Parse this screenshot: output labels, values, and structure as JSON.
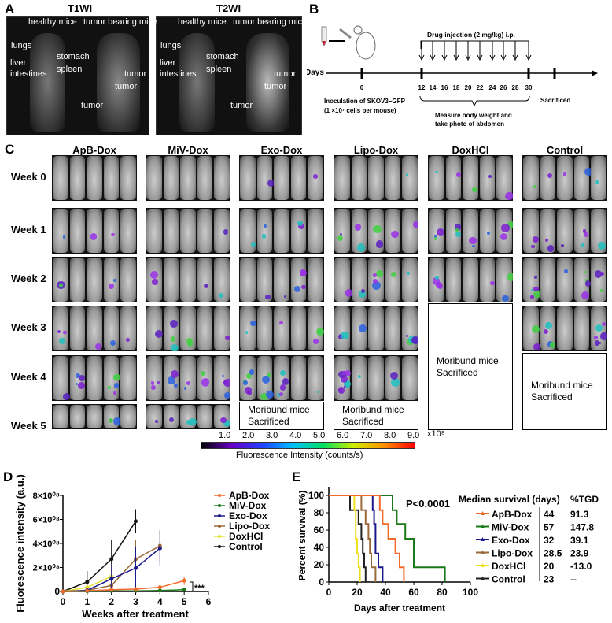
{
  "panelA": {
    "label": "A",
    "images": [
      {
        "title": "T1WI"
      },
      {
        "title": "T2WI"
      }
    ],
    "healthy": "healthy mice",
    "tumor_bearing": "tumor bearing mice",
    "organs": [
      "lungs",
      "liver",
      "intestines",
      "stomach",
      "spleen"
    ],
    "tumor": "tumor"
  },
  "panelB": {
    "label": "B",
    "days_label": "Days",
    "injection": "Drug  injection (2 mg/kg) i.p.",
    "ticks": [
      "0",
      "12",
      "14",
      "16",
      "18",
      "20",
      "22",
      "24",
      "26",
      "28",
      "30"
    ],
    "inoculation_1": "Inoculation of  SKOV3−GFP",
    "inoculation_2": "(1 ×10⁷ cells per mouse)",
    "measure_1": "Measure body weight and",
    "measure_2": "take photo of abdomen",
    "sacrificed": "Sacrificed"
  },
  "panelC": {
    "label": "C",
    "groups": [
      "ApB-Dox",
      "MiV-Dox",
      "Exo-Dox",
      "Lipo-Dox",
      "DoxHCl",
      "Control"
    ],
    "weeks": [
      "Week 0",
      "Week 1",
      "Week 2",
      "Week 3",
      "Week 4",
      "Week 5"
    ],
    "moribund_1": "Moribund mice",
    "moribund_2": "Sacrificed",
    "colorbar_ticks": [
      "1.0",
      "2.0",
      "3.0",
      "4.0",
      "5.0",
      "6.0",
      "7.0",
      "8.0",
      "9.0"
    ],
    "colorbar_unit": "x10⁸",
    "colorbar_label": "Fluorescence Intensity (counts/s)"
  },
  "chart_data": [
    {
      "panel": "D",
      "type": "line",
      "xlabel": "Weeks after treatment",
      "ylabel": "Fluorescence intensity (a.u.)",
      "xlim": [
        0,
        6
      ],
      "ylim": [
        0,
        800000000
      ],
      "xticks": [
        "0",
        "1",
        "2",
        "3",
        "4",
        "5",
        "6"
      ],
      "yticks": [
        "0",
        "2×10⁰⁸",
        "4×10⁰⁸",
        "6×10⁰⁸",
        "8×10⁰⁸"
      ],
      "legend": "right",
      "annotation": "***",
      "series": [
        {
          "name": "ApB-Dox",
          "color": "#f26b2c",
          "x": [
            0,
            1,
            2,
            3,
            4,
            5
          ],
          "y": [
            0,
            5000000,
            15000000,
            20000000,
            35000000,
            90000000
          ],
          "err": [
            0,
            3000000,
            8000000,
            10000000,
            20000000,
            35000000
          ]
        },
        {
          "name": "MiV-Dox",
          "color": "#1a7a1a",
          "x": [
            0,
            1,
            2,
            3,
            4,
            5
          ],
          "y": [
            0,
            2000000,
            5000000,
            5000000,
            8000000,
            15000000
          ],
          "err": [
            0,
            1000000,
            3000000,
            3000000,
            5000000,
            12000000
          ]
        },
        {
          "name": "Exo-Dox",
          "color": "#1a1a8c",
          "x": [
            0,
            1,
            2,
            3,
            4
          ],
          "y": [
            0,
            10000000,
            105000000,
            195000000,
            360000000
          ],
          "err": [
            0,
            5000000,
            120000000,
            180000000,
            150000000
          ]
        },
        {
          "name": "Lipo-Dox",
          "color": "#9b6a3a",
          "x": [
            0,
            1,
            2,
            3,
            4
          ],
          "y": [
            0,
            10000000,
            50000000,
            270000000,
            380000000
          ],
          "err": [
            0,
            5000000,
            40000000,
            160000000,
            130000000
          ]
        },
        {
          "name": "DoxHCl",
          "color": "#e6e033",
          "x": [
            0,
            1,
            2
          ],
          "y": [
            0,
            35000000,
            125000000
          ],
          "err": [
            0,
            15000000,
            100000000
          ]
        },
        {
          "name": "Control",
          "color": "#111111",
          "x": [
            0,
            1,
            2,
            3
          ],
          "y": [
            0,
            80000000,
            270000000,
            585000000
          ],
          "err": [
            0,
            90000000,
            160000000,
            100000000
          ]
        }
      ]
    },
    {
      "panel": "E",
      "type": "line",
      "xlabel": "Days after treatment",
      "ylabel": "Percent survival (%)",
      "xlim": [
        0,
        100
      ],
      "ylim": [
        0,
        100
      ],
      "xticks": [
        "0",
        "20",
        "40",
        "60",
        "80",
        "100"
      ],
      "yticks": [
        "0",
        "20",
        "40",
        "60",
        "80",
        "100"
      ],
      "annotation": "P<0.0001",
      "table_header_1": "Median survival (days)",
      "table_header_2": "%TGD",
      "series": [
        {
          "name": "ApB-Dox",
          "color": "#f26b2c",
          "median": "44",
          "tgd": "91.3",
          "steps": [
            [
              36,
              83
            ],
            [
              38,
              67
            ],
            [
              42,
              50
            ],
            [
              47,
              33
            ],
            [
              50,
              17
            ],
            [
              53,
              0
            ]
          ]
        },
        {
          "name": "MiV-Dox",
          "color": "#1a7a1a",
          "median": "57",
          "tgd": "147.8",
          "steps": [
            [
              45,
              83
            ],
            [
              48,
              67
            ],
            [
              54,
              50
            ],
            [
              60,
              17
            ],
            [
              82,
              0
            ]
          ]
        },
        {
          "name": "Exo-Dox",
          "color": "#1a1a8c",
          "median": "32",
          "tgd": "39.1",
          "steps": [
            [
              31,
              83
            ],
            [
              32,
              67
            ],
            [
              33,
              33
            ],
            [
              35,
              17
            ],
            [
              38,
              0
            ]
          ]
        },
        {
          "name": "Lipo-Dox",
          "color": "#9b6a3a",
          "median": "28.5",
          "tgd": "23.9",
          "steps": [
            [
              23,
              83
            ],
            [
              26,
              67
            ],
            [
              28,
              50
            ],
            [
              29,
              33
            ],
            [
              30,
              17
            ],
            [
              33,
              0
            ]
          ]
        },
        {
          "name": "DoxHCl",
          "color": "#f0e020",
          "median": "20",
          "tgd": "-13.0",
          "steps": [
            [
              18,
              83
            ],
            [
              19,
              50
            ],
            [
              20,
              33
            ],
            [
              21,
              17
            ],
            [
              22,
              0
            ]
          ]
        },
        {
          "name": "Control",
          "color": "#222222",
          "median": "23",
          "tgd": "--",
          "steps": [
            [
              15,
              83
            ],
            [
              21,
              67
            ],
            [
              23,
              50
            ],
            [
              24,
              33
            ],
            [
              25,
              17
            ],
            [
              26,
              0
            ]
          ]
        }
      ]
    }
  ]
}
